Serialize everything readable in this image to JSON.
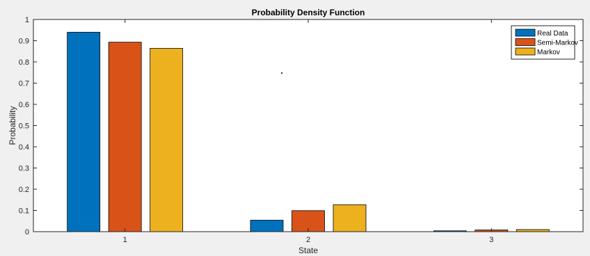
{
  "chart_data": {
    "type": "bar",
    "title": "Probability Density Function",
    "xlabel": "State",
    "ylabel": "Probability",
    "categories": [
      "1",
      "2",
      "3"
    ],
    "series": [
      {
        "name": "Real Data",
        "color": "#0072BD",
        "values": [
          0.94,
          0.054,
          0.004
        ]
      },
      {
        "name": "Semi-Markov",
        "color": "#D95319",
        "values": [
          0.893,
          0.099,
          0.008
        ]
      },
      {
        "name": "Markov",
        "color": "#EDB120",
        "values": [
          0.864,
          0.127,
          0.01
        ]
      }
    ],
    "ylim": [
      0,
      1
    ],
    "yticks": [
      "0",
      "0.1",
      "0.2",
      "0.3",
      "0.4",
      "0.5",
      "0.6",
      "0.7",
      "0.8",
      "0.9",
      "1"
    ],
    "grid": false,
    "legend_position": "top-right",
    "colors": {
      "figure_background": "#F0F0F0",
      "axes_background": "#FFFFFF",
      "axis_line": "#262626",
      "bar_edge": "#000000"
    }
  }
}
